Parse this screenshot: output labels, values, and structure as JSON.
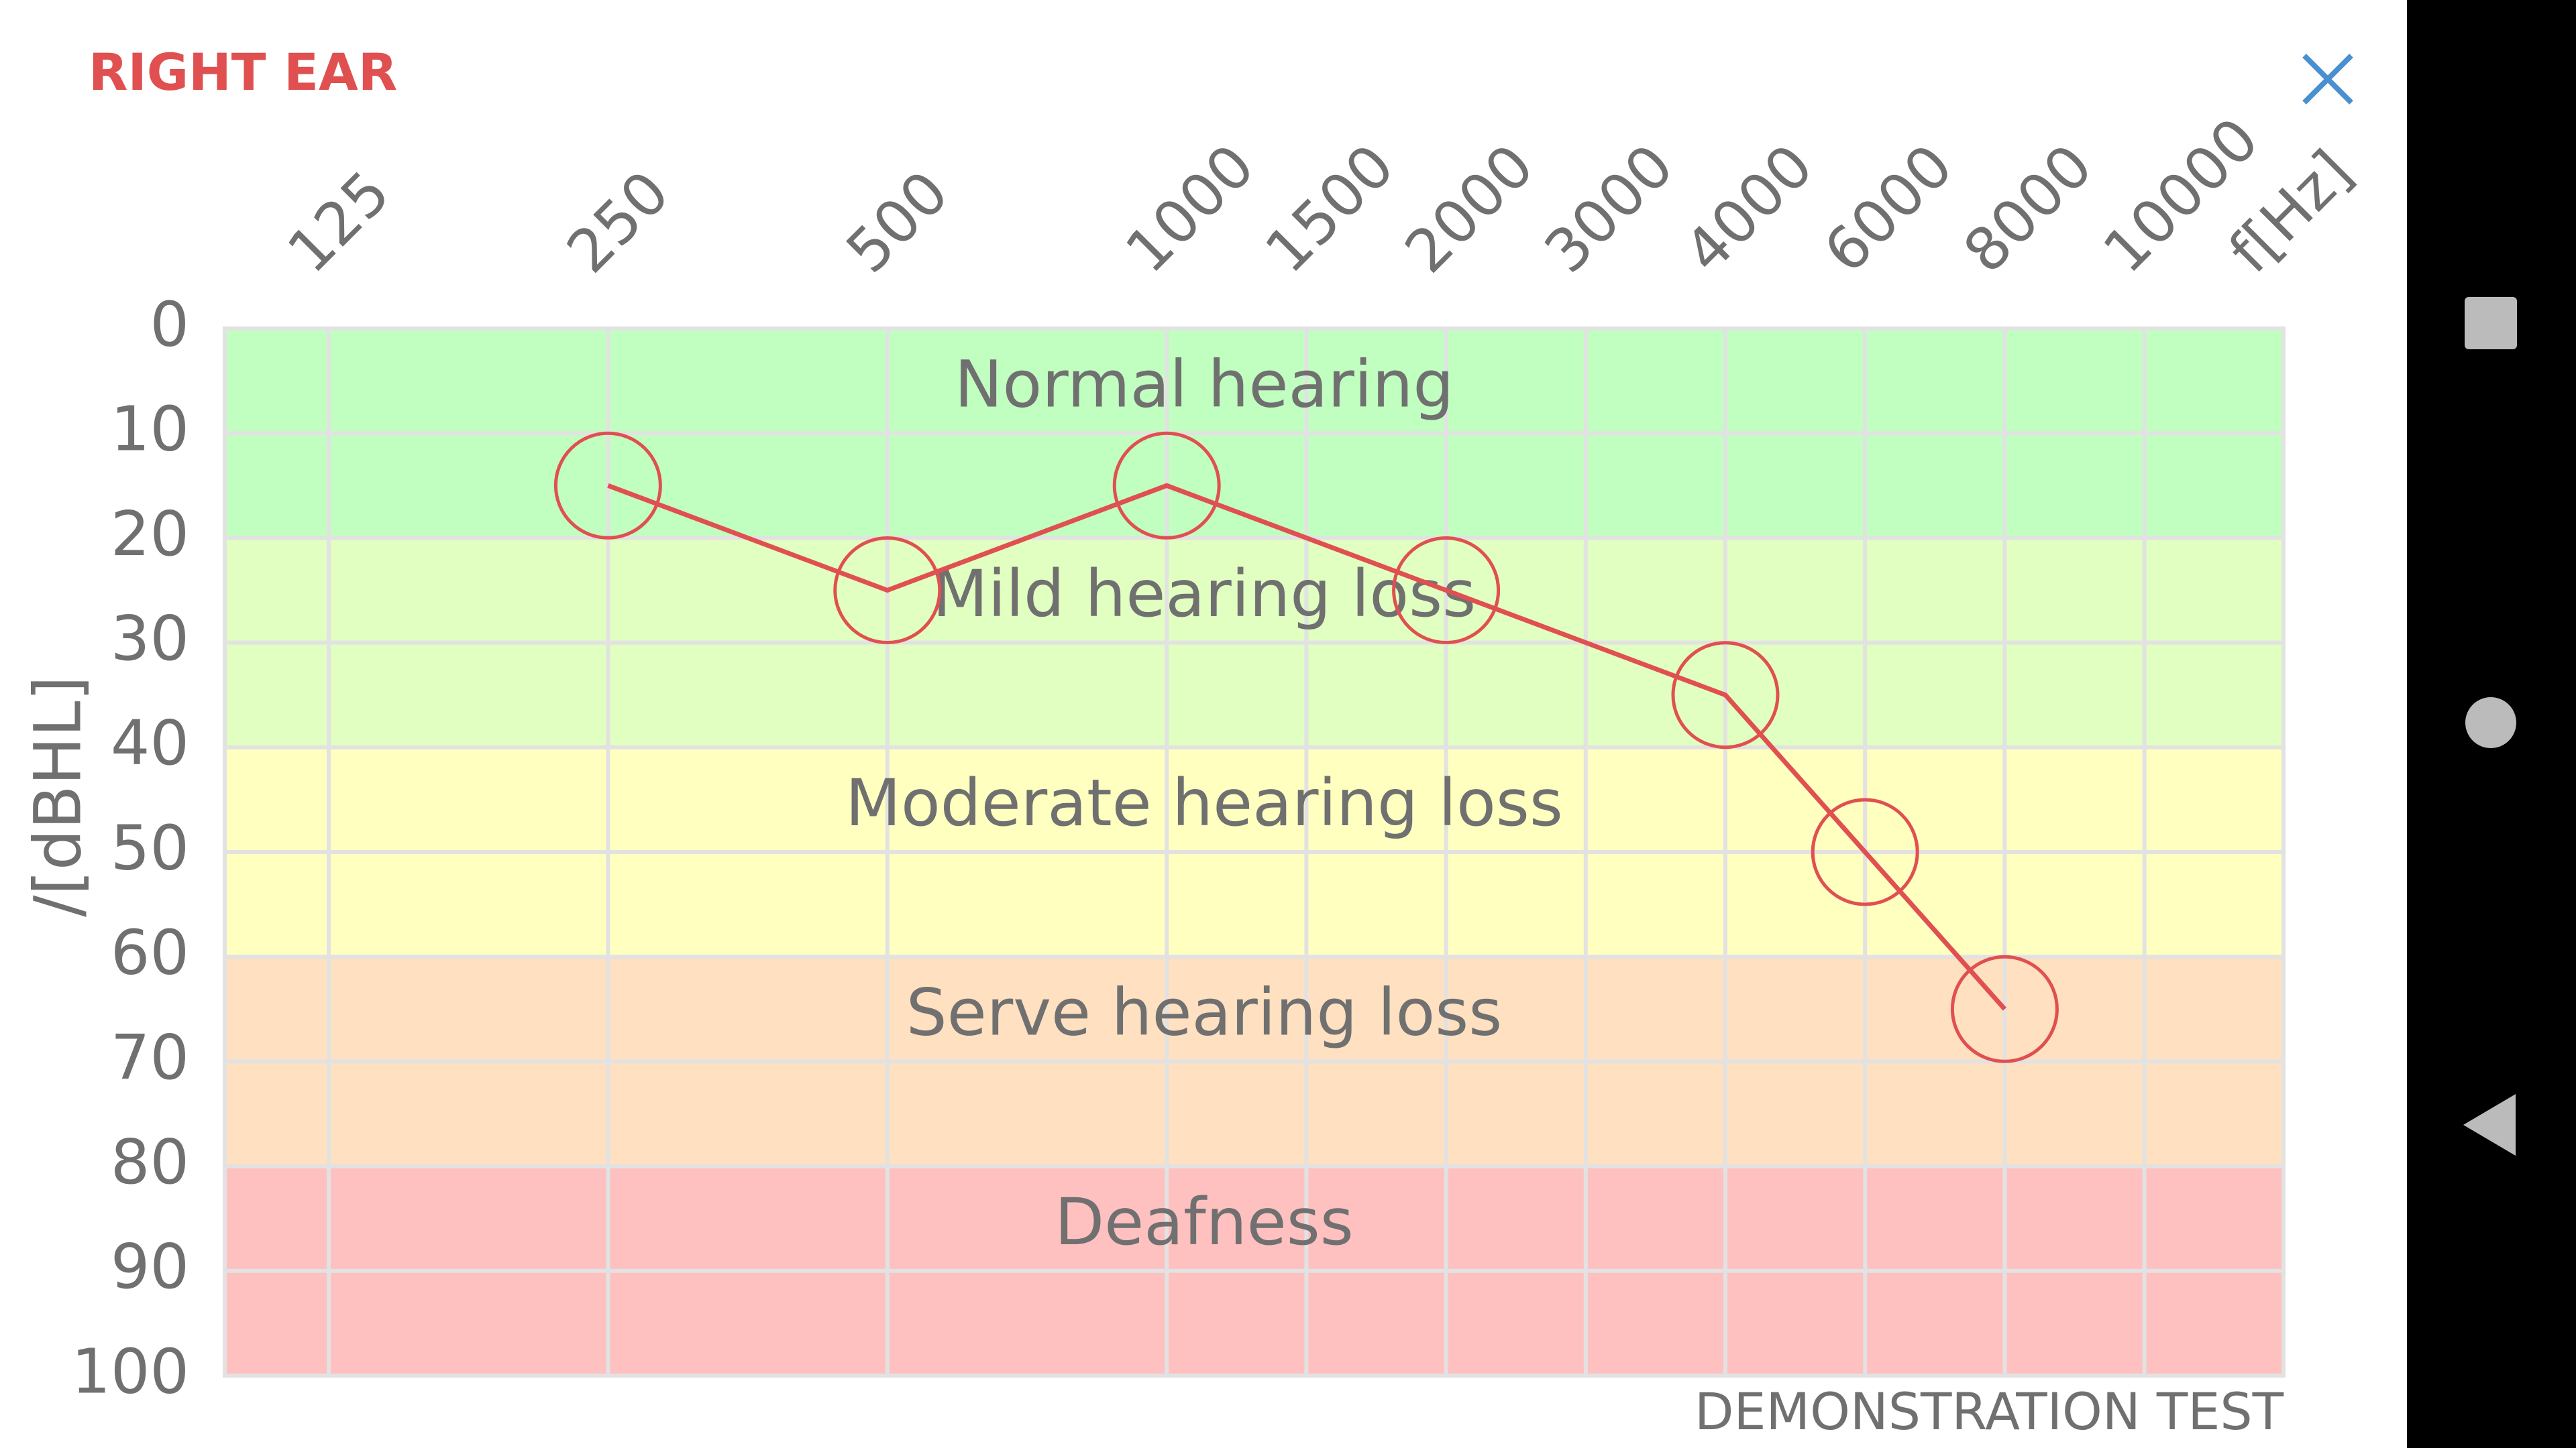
{
  "header": {
    "title": "RIGHT EAR"
  },
  "footer": {
    "text": "DEMONSTRATION TEST"
  },
  "chart_data": {
    "type": "line",
    "x_label": "f[Hz]",
    "y_label": "/[dBHL]",
    "xticks": [
      125,
      250,
      500,
      1000,
      1500,
      2000,
      3000,
      4000,
      6000,
      8000,
      10000
    ],
    "ylim": [
      0,
      100
    ],
    "yticks": [
      0,
      10,
      20,
      30,
      40,
      50,
      60,
      70,
      80,
      90,
      100
    ],
    "y_inverted": true,
    "grid": true,
    "bands": [
      {
        "label": "Normal hearing",
        "from": 0,
        "to": 20,
        "color": "#c0ffc0"
      },
      {
        "label": "Mild hearing loss",
        "from": 20,
        "to": 40,
        "color": "#e0ffc0"
      },
      {
        "label": "Moderate hearing loss",
        "from": 40,
        "to": 60,
        "color": "#ffffc0"
      },
      {
        "label": "Serve hearing loss",
        "from": 60,
        "to": 80,
        "color": "#ffe0c0"
      },
      {
        "label": "Deafness",
        "from": 80,
        "to": 100,
        "color": "#ffc0c0"
      }
    ],
    "series": [
      {
        "name": "Right ear",
        "color": "#e05050",
        "x": [
          250,
          500,
          1000,
          2000,
          4000,
          6000,
          8000
        ],
        "values": [
          15,
          25,
          15,
          25,
          35,
          50,
          65
        ]
      }
    ]
  }
}
